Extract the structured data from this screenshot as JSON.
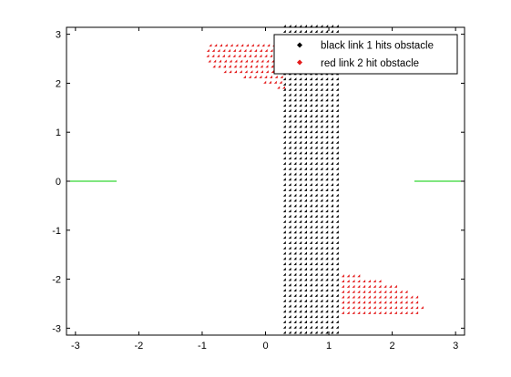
{
  "chart_data": {
    "type": "scatter",
    "xlim": [
      -3.14159,
      3.14159
    ],
    "ylim": [
      -3.14159,
      3.14159
    ],
    "x_ticks": [
      "-3",
      "-2",
      "-1",
      "0",
      "1",
      "2",
      "3"
    ],
    "y_ticks": [
      "3",
      "2",
      "1",
      "0",
      "-1",
      "-2",
      "-3"
    ],
    "x_tick_values": [
      -3,
      -2,
      -1,
      0,
      1,
      2,
      3
    ],
    "y_tick_values": [
      3,
      2,
      1,
      0,
      -1,
      -2,
      -3
    ],
    "grid": false,
    "legend_position": "top-right",
    "series": [
      {
        "name": "black link 1 hits obstacle",
        "color": "#000000",
        "marker": "diamond",
        "region": {
          "x_range": [
            0.32,
            1.2
          ],
          "y_range": [
            -3.14,
            3.14
          ]
        }
      },
      {
        "name": "red link 2 hit obstacle",
        "color": "#e41b1b",
        "marker": "diamond",
        "upper_region": {
          "y_range": [
            1.85,
            2.75
          ],
          "profile": [
            [
              2.75,
              -0.85
            ],
            [
              2.6,
              -0.9
            ],
            [
              2.45,
              -0.88
            ],
            [
              2.3,
              -0.78
            ],
            [
              2.2,
              -0.6
            ],
            [
              2.1,
              -0.3
            ],
            [
              2.0,
              0.0
            ],
            [
              1.9,
              0.2
            ],
            [
              1.85,
              0.3
            ]
          ],
          "x_right": 0.32
        },
        "lower_region": {
          "y_range": [
            -2.75,
            -1.85
          ],
          "profile": [
            [
              -1.85,
              0.3
            ],
            [
              -1.9,
              1.4
            ],
            [
              -2.0,
              1.7
            ],
            [
              -2.1,
              2.0
            ],
            [
              -2.2,
              2.2
            ],
            [
              -2.3,
              2.35
            ],
            [
              -2.45,
              2.45
            ],
            [
              -2.6,
              2.5
            ],
            [
              -2.75,
              2.4
            ]
          ],
          "x_left": 1.2
        }
      }
    ],
    "reference_lines": [
      {
        "color": "#00cc00",
        "x": [
          -3.14,
          -2.35
        ],
        "y": [
          0,
          0
        ]
      },
      {
        "color": "#00cc00",
        "x": [
          2.35,
          3.14
        ],
        "y": [
          0,
          0
        ]
      }
    ]
  }
}
